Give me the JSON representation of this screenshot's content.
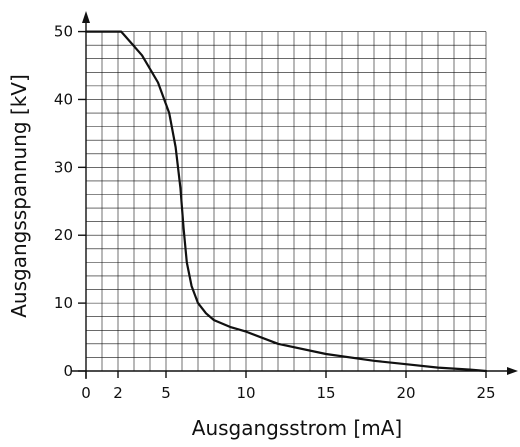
{
  "chart_data": {
    "type": "line",
    "xlabel": "Ausgangsstrom [mA]",
    "ylabel": "Ausgangsspannung [kV]",
    "xlim": [
      0,
      26
    ],
    "ylim": [
      0,
      52
    ],
    "xticks": [
      0,
      2,
      5,
      10,
      15,
      20,
      25
    ],
    "yticks": [
      0,
      10,
      20,
      30,
      40,
      50
    ],
    "grid": true,
    "series": [
      {
        "name": "",
        "x": [
          0,
          2.2,
          3.5,
          4.5,
          5.2,
          5.6,
          5.9,
          6.1,
          6.3,
          6.6,
          7.0,
          7.5,
          8.0,
          9.0,
          10.0,
          12.0,
          15.0,
          18.0,
          20.0,
          22.0,
          24.0,
          25.0
        ],
        "y": [
          50,
          50,
          46.5,
          42.5,
          38,
          33,
          27,
          21,
          16,
          12.5,
          10,
          8.5,
          7.5,
          6.5,
          5.8,
          4.0,
          2.5,
          1.5,
          1.0,
          0.5,
          0.2,
          0
        ]
      }
    ]
  }
}
